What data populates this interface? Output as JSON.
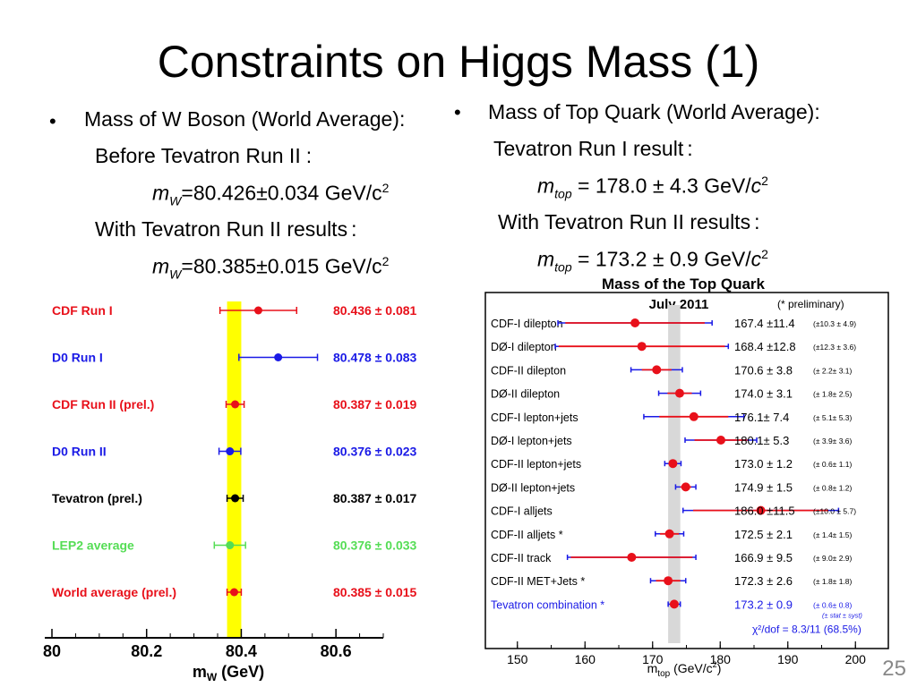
{
  "slide": {
    "title": "Constraints on Higgs Mass (1)",
    "page_number": "25"
  },
  "left": {
    "heading": "Mass of W Boson (World Average):",
    "before_label": "Before Tevatron Run II",
    "before_colon": ":",
    "mw_symbol": "m",
    "mw_sub": "W",
    "before_value": "=80.426",
    "pm": "±",
    "before_err": "0.034 GeV/c",
    "exp": "2",
    "with_label": "With Tevatron Run II results",
    "with_colon": ":",
    "with_value": "=80.385",
    "with_err": "0.015 GeV/c"
  },
  "right": {
    "heading": "Mass of Top Quark (World Average):",
    "run1_label": "Tevatron Run I result",
    "colon": ":",
    "mtop_symbol": "m",
    "mtop_sub": "top",
    "run1_value": " = 178.0 ",
    "pm": "±",
    "run1_err": " 4.3 GeV/",
    "c": "c",
    "exp": "2",
    "run2_label": "With Tevatron Run II results",
    "run2_value": " = 173.2 ",
    "run2_err": " 0.9 GeV/"
  },
  "chart_data": [
    {
      "type": "scatter",
      "title": "",
      "xlabel": "m_W (GeV)",
      "x_tick_labels": [
        "80",
        "80.2",
        "80.4",
        "80.6"
      ],
      "xlim": [
        80.0,
        80.7
      ],
      "band": {
        "center": 80.385,
        "half_width": 0.015,
        "color": "#ffff00"
      },
      "series": [
        {
          "name": "CDF Run I",
          "value": 80.436,
          "error": 0.081,
          "label": "80.436 ± 0.081",
          "color": "#e8101a"
        },
        {
          "name": "D0 Run I",
          "value": 80.478,
          "error": 0.083,
          "label": "80.478 ± 0.083",
          "color": "#1a1ae6"
        },
        {
          "name": "CDF Run  II (prel.)",
          "value": 80.387,
          "error": 0.019,
          "label": "80.387 ± 0.019",
          "color": "#e8101a"
        },
        {
          "name": "D0 Run II",
          "value": 80.376,
          "error": 0.023,
          "label": "80.376 ± 0.023",
          "color": "#1a1ae6"
        },
        {
          "name": "Tevatron (prel.)",
          "value": 80.387,
          "error": 0.017,
          "label": "80.387 ± 0.017",
          "color": "#000000"
        },
        {
          "name": "LEP2 average",
          "value": 80.376,
          "error": 0.033,
          "label": "80.376 ± 0.033",
          "color": "#55dd55"
        },
        {
          "name": "World average (prel.)",
          "value": 80.385,
          "error": 0.015,
          "label": "80.385 ± 0.015",
          "color": "#e8101a"
        }
      ]
    },
    {
      "type": "scatter",
      "title": "Mass of the Top Quark",
      "subtitle": "July 2011",
      "note": "(* preliminary)",
      "xlabel": "m_top (GeV/c^2)",
      "x_tick_labels": [
        "150",
        "160",
        "170",
        "180",
        "190",
        "200"
      ],
      "xlim": [
        145,
        205
      ],
      "band": {
        "center": 173.2,
        "half_width": 0.9,
        "color": "#d8d8d8"
      },
      "chi2": "χ²/dof = 8.3/11 (68.5%)",
      "combination_breakdown_legend": "(± stat ± syst)",
      "series": [
        {
          "name": "CDF-I dilepton",
          "value": 167.4,
          "stat": 10.3,
          "total": 11.4,
          "label": "167.4 ±11.4",
          "breakdown": "(±10.3 ± 4.9)"
        },
        {
          "name": "DØ-I dilepton",
          "value": 168.4,
          "stat": 12.3,
          "total": 12.8,
          "label": "168.4 ±12.8",
          "breakdown": "(±12.3 ± 3.6)"
        },
        {
          "name": "CDF-II dilepton",
          "value": 170.6,
          "stat": 2.2,
          "total": 3.8,
          "label": "170.6 ± 3.8",
          "breakdown": "(± 2.2± 3.1)"
        },
        {
          "name": "DØ-II dilepton",
          "value": 174.0,
          "stat": 1.8,
          "total": 3.1,
          "label": "174.0 ± 3.1",
          "breakdown": "(± 1.8± 2.5)"
        },
        {
          "name": "CDF-I lepton+jets",
          "value": 176.1,
          "stat": 5.1,
          "total": 7.4,
          "label": "176.1± 7.4",
          "breakdown": "(± 5.1± 5.3)"
        },
        {
          "name": "DØ-I lepton+jets",
          "value": 180.1,
          "stat": 3.9,
          "total": 5.3,
          "label": "180.1± 5.3",
          "breakdown": "(± 3.9± 3.6)"
        },
        {
          "name": "CDF-II lepton+jets",
          "value": 173.0,
          "stat": 0.6,
          "total": 1.2,
          "label": "173.0 ± 1.2",
          "breakdown": "(± 0.6± 1.1)"
        },
        {
          "name": "DØ-II lepton+jets",
          "value": 174.9,
          "stat": 0.8,
          "total": 1.5,
          "label": "174.9 ± 1.5",
          "breakdown": "(± 0.8± 1.2)"
        },
        {
          "name": "CDF-I alljets",
          "value": 186.0,
          "stat": 10.0,
          "total": 11.5,
          "label": "186.0 ±11.5",
          "breakdown": "(±10.0 ± 5.7)"
        },
        {
          "name": "CDF-II alljets *",
          "value": 172.5,
          "stat": 1.4,
          "total": 2.1,
          "label": "172.5 ± 2.1",
          "breakdown": "(± 1.4± 1.5)"
        },
        {
          "name": "CDF-II track",
          "value": 166.9,
          "stat": 9.0,
          "total": 9.5,
          "label": "166.9 ± 9.5",
          "breakdown": "(± 9.0± 2.9)"
        },
        {
          "name": "CDF-II MET+Jets *",
          "value": 172.3,
          "stat": 1.8,
          "total": 2.6,
          "label": "172.3 ± 2.6",
          "breakdown": "(± 1.8± 1.8)"
        },
        {
          "name": "Tevatron combination *",
          "value": 173.2,
          "stat": 0.6,
          "total": 0.9,
          "label": "173.2 ± 0.9",
          "breakdown": "(± 0.6± 0.8)",
          "combination": true
        }
      ]
    }
  ]
}
